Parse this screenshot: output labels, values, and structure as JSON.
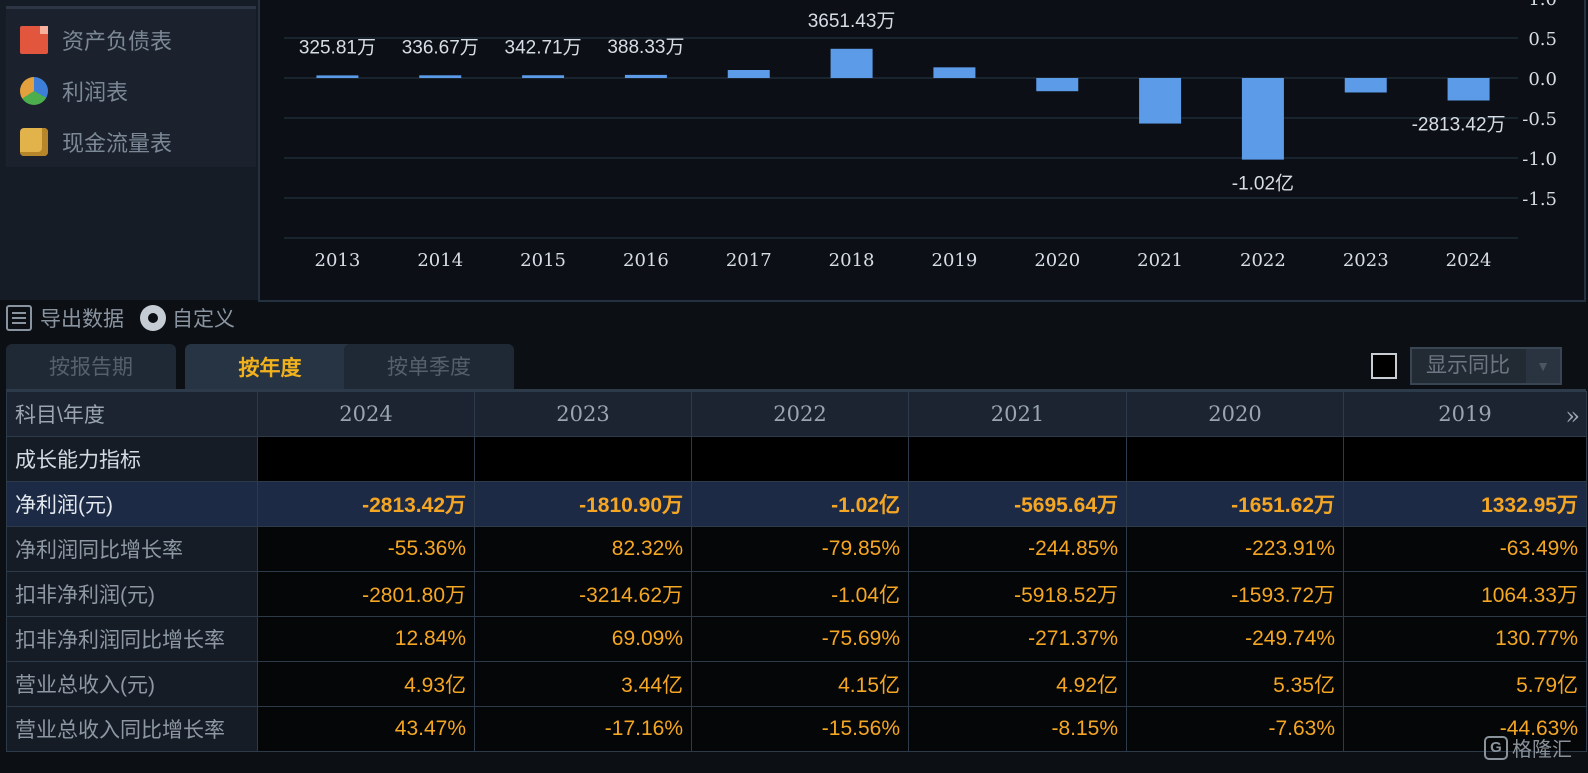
{
  "nav": {
    "items": [
      {
        "label": "资产负债表",
        "icon": "balance-sheet-icon"
      },
      {
        "label": "利润表",
        "icon": "pie-chart-icon"
      },
      {
        "label": "现金流量表",
        "icon": "coins-icon"
      }
    ]
  },
  "chart_data": {
    "type": "bar",
    "categories": [
      "2013",
      "2014",
      "2015",
      "2016",
      "2017",
      "2018",
      "2019",
      "2020",
      "2021",
      "2022",
      "2023",
      "2024"
    ],
    "values": [
      0.0326,
      0.0337,
      0.0343,
      0.0388,
      0.1,
      0.3651,
      0.1333,
      -0.1652,
      -0.5696,
      -1.02,
      -0.1811,
      -0.2813
    ],
    "value_labels": [
      "325.81万",
      "336.67万",
      "342.71万",
      "388.33万",
      "",
      "3651.43万",
      "",
      "",
      "",
      "-1.02亿",
      "",
      "-2813.42万"
    ],
    "y_ticks": [
      "1.0",
      "0.5",
      "0.0",
      "-0.5",
      "-1.0",
      "-1.5"
    ],
    "ylim": [
      -1.95,
      0.95
    ],
    "grid": true,
    "bar_color": "#5b9be8"
  },
  "toolbar": {
    "export_label": "导出数据",
    "custom_label": "自定义"
  },
  "tabs": [
    "按报告期",
    "按年度",
    "按单季度"
  ],
  "active_tab": 1,
  "yoy_select_label": "显示同比",
  "table": {
    "corner_header": "科目\\年度",
    "years": [
      "2024",
      "2023",
      "2022",
      "2021",
      "2020",
      "2019"
    ],
    "section_title": "成长能力指标",
    "rows": [
      {
        "label": "净利润(元)",
        "values": [
          "-2813.42万",
          "-1810.90万",
          "-1.02亿",
          "-5695.64万",
          "-1651.62万",
          "1332.95万"
        ]
      },
      {
        "label": "净利润同比增长率",
        "values": [
          "-55.36%",
          "82.32%",
          "-79.85%",
          "-244.85%",
          "-223.91%",
          "-63.49%"
        ]
      },
      {
        "label": "扣非净利润(元)",
        "values": [
          "-2801.80万",
          "-3214.62万",
          "-1.04亿",
          "-5918.52万",
          "-1593.72万",
          "1064.33万"
        ]
      },
      {
        "label": "扣非净利润同比增长率",
        "values": [
          "12.84%",
          "69.09%",
          "-75.69%",
          "-271.37%",
          "-249.74%",
          "130.77%"
        ]
      },
      {
        "label": "营业总收入(元)",
        "values": [
          "4.93亿",
          "3.44亿",
          "4.15亿",
          "4.92亿",
          "5.35亿",
          "5.79亿"
        ]
      },
      {
        "label": "营业总收入同比增长率",
        "values": [
          "43.47%",
          "-17.16%",
          "-15.56%",
          "-8.15%",
          "-7.63%",
          "-44.63%"
        ]
      }
    ]
  },
  "watermark": "格隆汇"
}
